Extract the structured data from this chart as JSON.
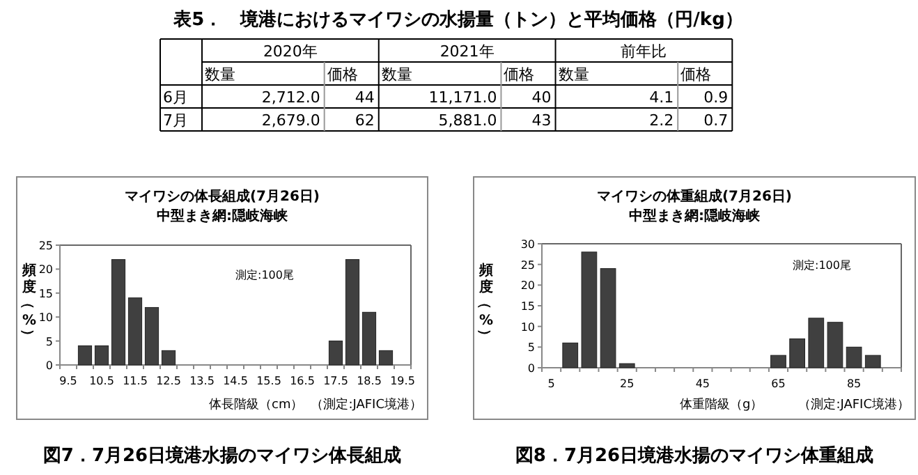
{
  "chart_data": [
    {
      "type": "other",
      "title": "表5．　境港におけるマイワシの水揚量（トン）と平均価格（円/kg）",
      "annotations": [
        "2020年",
        "2021年",
        "前年比"
      ],
      "categories": [
        "数量",
        "価格",
        "数量",
        "価格",
        "数量",
        "価格"
      ],
      "y_categories": [
        "6月",
        "7月"
      ],
      "cell_labels": [
        [
          "2,712.0",
          "44",
          "11,171.0",
          "40",
          "4.1",
          "0.9"
        ],
        [
          "2,679.0",
          "62",
          "5,881.0",
          "43",
          "2.2",
          "0.7"
        ]
      ]
    },
    {
      "type": "bar",
      "title": "マイワシの体長組成(7月26日)",
      "subtitle": "中型まき網:隠岐海峡",
      "xlabel": "体長階級（cm）",
      "ylabel": "頻度（%）",
      "annotations": [
        "測定:100尾",
        "（測定:JAFIC境港）",
        "図7．7月26日境港水揚のマイワシ体長組成"
      ],
      "categories": [
        "9.5",
        null,
        "10.5",
        null,
        "11.5",
        null,
        "12.5",
        null,
        "13.5",
        null,
        "14.5",
        null,
        "15.5",
        null,
        "16.5",
        null,
        "17.5",
        null,
        "18.5",
        null,
        "19.5"
      ],
      "values": [
        0,
        4,
        4,
        22,
        14,
        12,
        3,
        0,
        0,
        0,
        0,
        0,
        0,
        0,
        0,
        0,
        5,
        22,
        11,
        3,
        0
      ],
      "color": "#404040",
      "ylim": [
        0,
        25
      ],
      "yticks": [
        0,
        5,
        10,
        15,
        20,
        25
      ]
    },
    {
      "type": "bar",
      "title": "マイワシの体重組成(7月26日)",
      "subtitle": "中型まき網:隠岐海峡",
      "xlabel": "体重階級（g）",
      "ylabel": "頻度（%）",
      "annotations": [
        "測定:100尾",
        "（測定:JAFIC境港）",
        "図8．7月26日境港水揚のマイワシ体重組成"
      ],
      "categories": [
        "5",
        null,
        null,
        null,
        "25",
        null,
        null,
        null,
        "45",
        null,
        null,
        null,
        "65",
        null,
        null,
        null,
        "85",
        null,
        null
      ],
      "values": [
        0,
        6,
        28,
        24,
        1,
        0,
        0,
        0,
        0,
        0,
        0,
        0,
        3,
        7,
        12,
        11,
        5,
        3,
        0
      ],
      "color": "#404040",
      "ylim": [
        0,
        30
      ],
      "yticks": [
        0,
        5,
        10,
        15,
        20,
        25,
        30
      ]
    }
  ]
}
